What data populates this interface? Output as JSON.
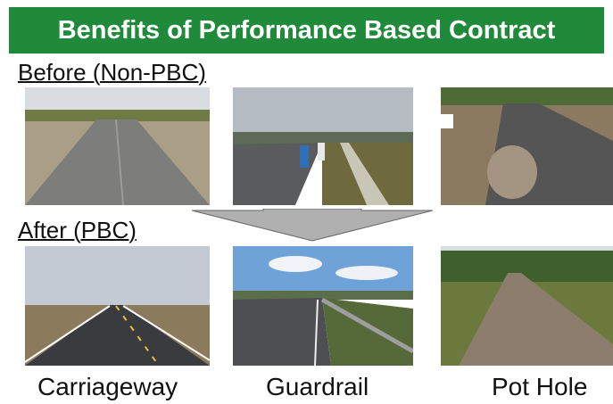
{
  "header": {
    "title": "Benefits of Performance Based Contract"
  },
  "sections": [
    {
      "label": "Before (Non-PBC)"
    },
    {
      "label": "After (PBC)"
    }
  ],
  "captions": [
    "Carriageway",
    "Guardrail",
    "Pot Hole"
  ]
}
